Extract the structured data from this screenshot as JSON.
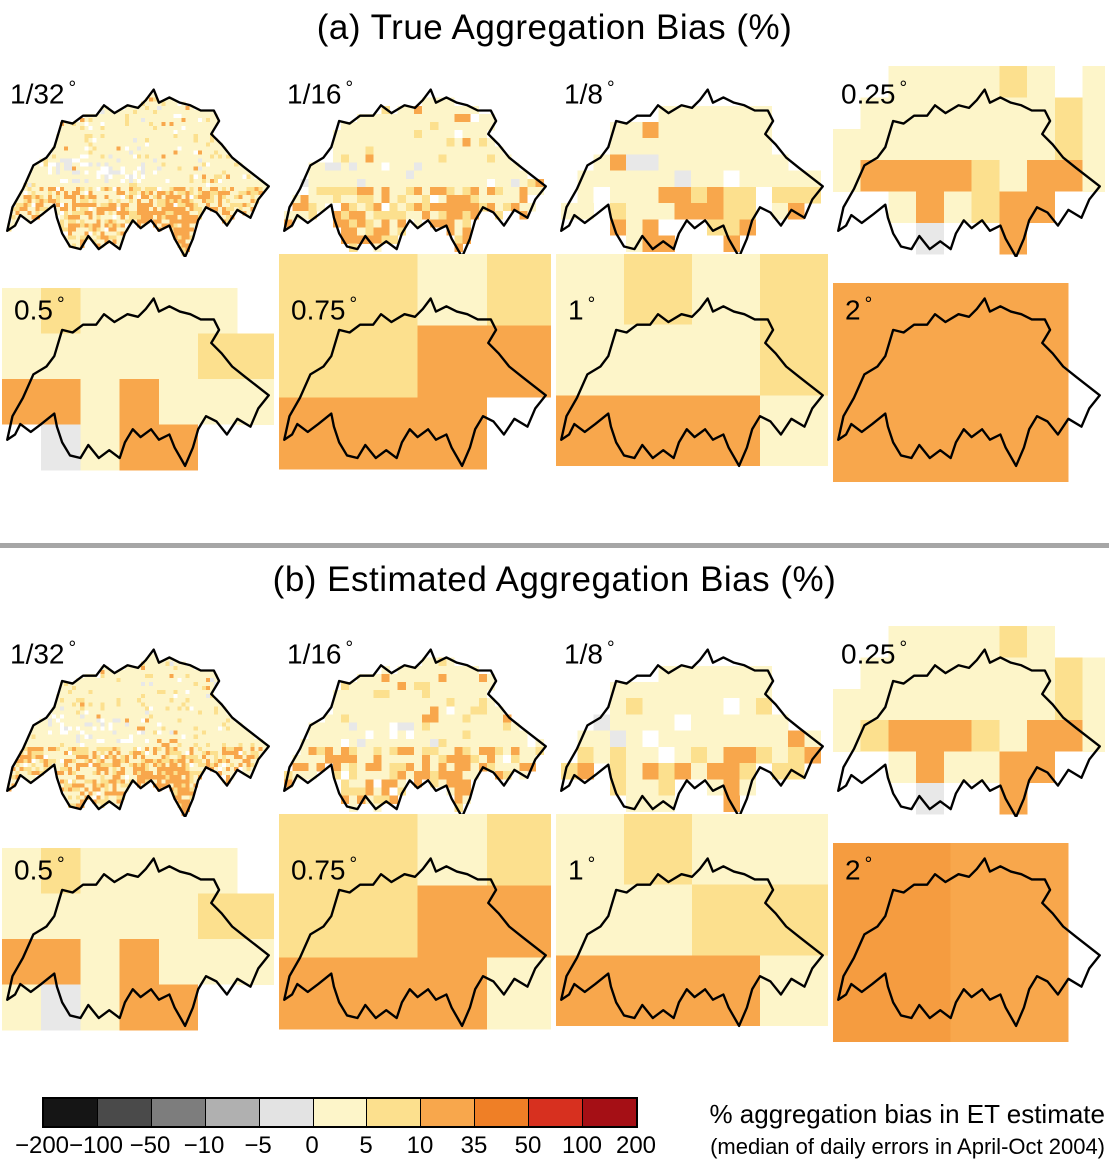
{
  "degree_symbol": "°",
  "palette": {
    "y": "#fdf5c9",
    "Y": "#fce08e",
    "o": "#f8a74c",
    "p": "#f59c40",
    "O": "#ef7f26",
    "w": "#ffffff",
    "g": "#e8e8e8",
    "G": "#bdbdbd"
  },
  "panels": [
    {
      "title": "(a) True Aggregation Bias (%)",
      "maps": [
        {
          "name": "1-32deg",
          "label": "1/32",
          "mode": "fine",
          "cell": 1.55,
          "seed": 7
        },
        {
          "name": "1-16deg",
          "label": "1/16",
          "mode": "fine",
          "cell": 3.1,
          "seed": 8
        },
        {
          "name": "1-8deg",
          "label": "1/8",
          "mode": "fine",
          "cell": 6.2,
          "seed": 9
        },
        {
          "name": "0-25deg",
          "label": "0.25",
          "mode": "blocky",
          "ox": -2,
          "oy": -9,
          "cw": 10.6,
          "ch": 12,
          "rows": [
            "..yyyyYy.y",
            ".yyyyyyyYy",
            "yyyyyyyyYy",
            "yooooYyooy",
            ".wyoyYoow.",
            "..wg..ow.."
          ]
        },
        {
          "name": "0-5deg",
          "label": "0.5",
          "mode": "blocky",
          "ox": -2,
          "oy": -4,
          "cw": 15,
          "ch": 17.4,
          "rows": [
            "yYyyyy.",
            "yyyyyYY",
            "ooyoyyy",
            "wgyoow."
          ]
        },
        {
          "name": "0-75deg",
          "label": "0.75",
          "mode": "blocky",
          "ox": -2,
          "oy": -17,
          "cw": 26.5,
          "ch": 27.4,
          "rows": [
            "YYyY",
            "YYoo",
            "ooow"
          ]
        },
        {
          "name": "1deg",
          "label": "1",
          "mode": "blocky",
          "ox": -2,
          "oy": -17,
          "cw": 26,
          "ch": 27,
          "rows": [
            "yYyY",
            "yyyY",
            "oooy"
          ]
        },
        {
          "name": "2deg",
          "label": "2",
          "mode": "blocky",
          "ox": -2,
          "oy": -6,
          "cw": 45,
          "ch": 76,
          "rows": [
            "oo"
          ]
        }
      ]
    },
    {
      "title": "(b) Estimated Aggregation Bias (%)",
      "maps": [
        {
          "name": "1-32deg",
          "label": "1/32",
          "mode": "fine",
          "cell": 1.55,
          "seed": 17
        },
        {
          "name": "1-16deg",
          "label": "1/16",
          "mode": "fine",
          "cell": 3.1,
          "seed": 18
        },
        {
          "name": "1-8deg",
          "label": "1/8",
          "mode": "fine",
          "cell": 6.2,
          "seed": 19
        },
        {
          "name": "0-25deg",
          "label": "0.25",
          "mode": "blocky",
          "ox": -2,
          "oy": -9,
          "cw": 10.6,
          "ch": 12,
          "rows": [
            "..yyyyYy..",
            ".yyyyyyyYy",
            "yyyyyyyyYy",
            "yYoooYyooy",
            ".wyoyyoow.",
            "..wg..o..."
          ]
        },
        {
          "name": "0-5deg",
          "label": "0.5",
          "mode": "blocky",
          "ox": -2,
          "oy": -4,
          "cw": 15,
          "ch": 17.4,
          "rows": [
            "yYyyyy.",
            "yyyyyYY",
            "ooyoyyy",
            "ygyoow."
          ]
        },
        {
          "name": "0-75deg",
          "label": "0.75",
          "mode": "blocky",
          "ox": -2,
          "oy": -17,
          "cw": 26.5,
          "ch": 27.4,
          "rows": [
            "YYyY",
            "YYoo",
            "oooy"
          ]
        },
        {
          "name": "1deg",
          "label": "1",
          "mode": "blocky",
          "ox": -2,
          "oy": -17,
          "cw": 26,
          "ch": 27,
          "rows": [
            "yYyy",
            "yyYY",
            "oooy"
          ]
        },
        {
          "name": "2deg",
          "label": "2",
          "mode": "blocky",
          "ox": -2,
          "oy": -6,
          "cw": 45,
          "ch": 76,
          "rows": [
            "po"
          ]
        }
      ]
    }
  ],
  "colorbar": {
    "ticks": [
      "−200",
      "−100",
      "−50",
      "−10",
      "−5",
      "0",
      "5",
      "10",
      "35",
      "50",
      "100",
      "200"
    ],
    "segments": [
      "#151515",
      "#4a4a4a",
      "#7d7d7d",
      "#b0b0b0",
      "#e3e3e3",
      "#fdf5c9",
      "#fce08e",
      "#f8a74c",
      "#ef7f26",
      "#d7301f",
      "#a50f15"
    ],
    "caption_line1": "% aggregation bias in ET estimate",
    "caption_line2": "(median of daily errors in April-Oct 2004)"
  },
  "chart_data": {
    "type": "heatmap",
    "title_a": "(a) True Aggregation Bias (%)",
    "title_b": "(b) Estimated Aggregation Bias (%)",
    "panels": [
      {
        "label": "(a) True Aggregation Bias (%)",
        "resolutions_deg": [
          "1/32",
          "1/16",
          "1/8",
          "0.25",
          "0.5",
          "0.75",
          "1",
          "2"
        ]
      },
      {
        "label": "(b) Estimated Aggregation Bias (%)",
        "resolutions_deg": [
          "1/32",
          "1/16",
          "1/8",
          "0.25",
          "0.5",
          "0.75",
          "1",
          "2"
        ]
      }
    ],
    "region": "Switzerland",
    "colorbar_label": "% aggregation bias in ET estimate (median of daily errors in April-Oct 2004)",
    "tick_values": [
      -200,
      -100,
      -50,
      -10,
      -5,
      0,
      5,
      10,
      35,
      50,
      100,
      200
    ],
    "segment_colors": [
      "#151515",
      "#4a4a4a",
      "#7d7d7d",
      "#b0b0b0",
      "#e3e3e3",
      "#fdf5c9",
      "#fce08e",
      "#f8a74c",
      "#ef7f26",
      "#d7301f",
      "#a50f15"
    ],
    "summary": "Maps of aggregation bias in evapotranspiration estimates over Switzerland at eight spatial resolutions. Bias is mostly 0-5% (pale yellow) over the northern plateau, 5-35% (yellow-orange) over the southern Alps and Ticino, with scattered near-zero/negative (white-gray) cells; bias coverage becomes blockier and more uniformly 10-35% as resolution coarsens to 2 degrees. Estimated bias (panel b) closely reproduces true bias (panel a)."
  }
}
